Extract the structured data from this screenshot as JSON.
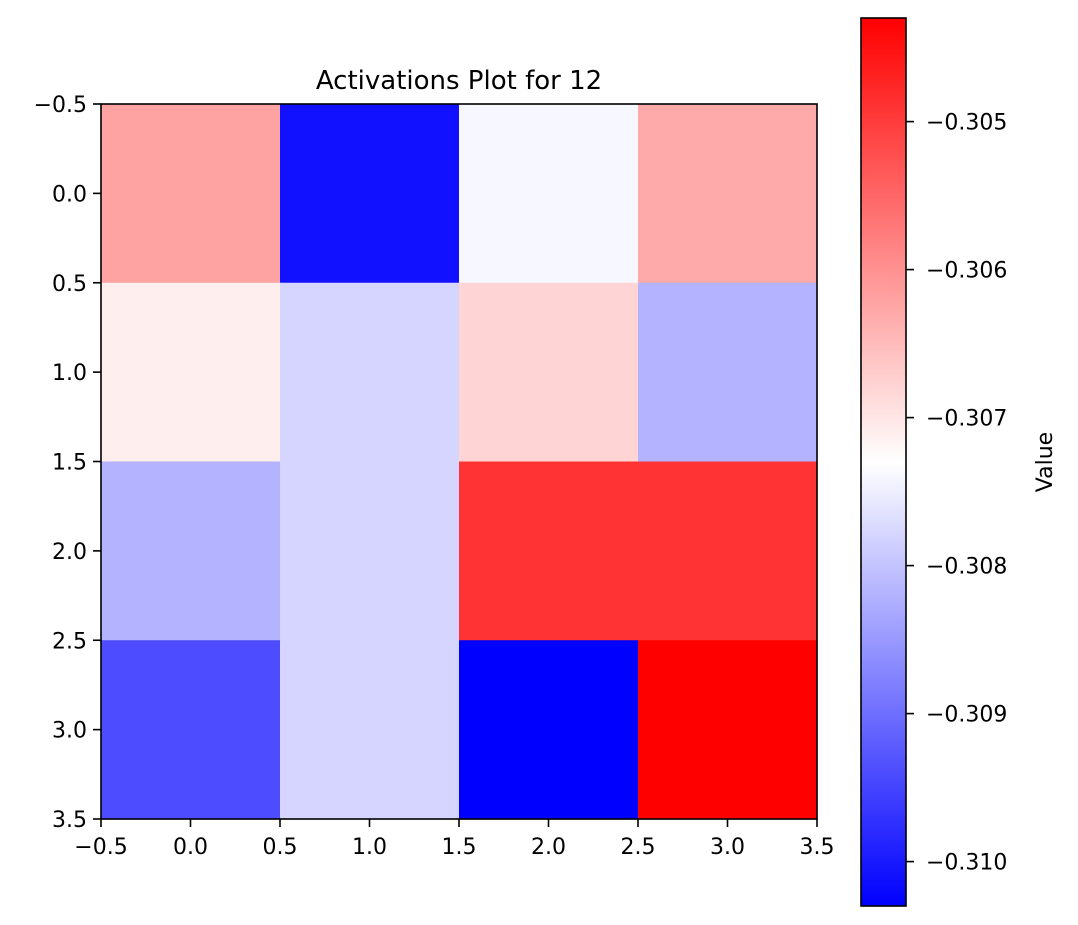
{
  "chart_data": {
    "type": "heatmap",
    "title": "Activations Plot for 12",
    "xlabel": "",
    "ylabel": "",
    "x_ticks": [
      "−0.5",
      "0.0",
      "0.5",
      "1.0",
      "1.5",
      "2.0",
      "2.5",
      "3.0",
      "3.5"
    ],
    "y_ticks": [
      "−0.5",
      "0.0",
      "0.5",
      "1.0",
      "1.5",
      "2.0",
      "2.5",
      "3.0",
      "3.5"
    ],
    "xlim": [
      -0.5,
      3.5
    ],
    "ylim": [
      3.5,
      -0.5
    ],
    "rows": 4,
    "cols": 4,
    "values": [
      [
        -0.3062,
        -0.3101,
        -0.3074,
        -0.3063
      ],
      [
        -0.3071,
        -0.3078,
        -0.3068,
        -0.3082
      ],
      [
        -0.3082,
        -0.3078,
        -0.3049,
        -0.3049
      ],
      [
        -0.3094,
        -0.3078,
        -0.3103,
        -0.3043
      ]
    ],
    "colormap": "bwr",
    "colormap_colors": [
      "#0000ff",
      "#ffffff",
      "#ff0000"
    ],
    "colorbar": {
      "label": "Value",
      "vmin": -0.3103,
      "vmax": -0.3043,
      "ticks": [
        -0.305,
        -0.306,
        -0.307,
        -0.308,
        -0.309,
        -0.31
      ],
      "tick_labels": [
        "−0.305",
        "−0.306",
        "−0.307",
        "−0.308",
        "−0.309",
        "−0.310"
      ]
    }
  }
}
